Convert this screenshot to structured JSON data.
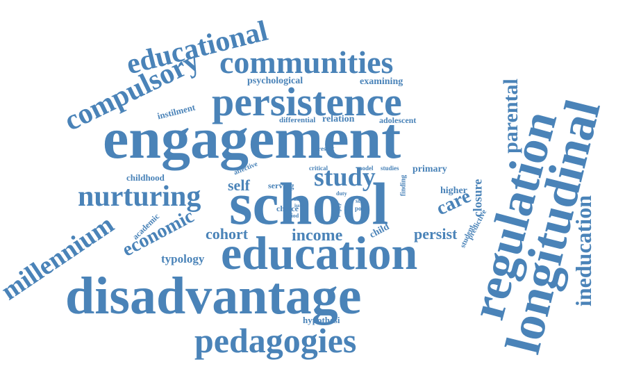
{
  "color": "#4a83b8",
  "words": [
    {
      "id": "engagement",
      "text": "engagement"
    },
    {
      "id": "school",
      "text": "school"
    },
    {
      "id": "education",
      "text": "education"
    },
    {
      "id": "disadvantage",
      "text": "disadvantage"
    },
    {
      "id": "persistence",
      "text": "persistence"
    },
    {
      "id": "pedagogies",
      "text": "pedagogies"
    },
    {
      "id": "regulation",
      "text": "regulation"
    },
    {
      "id": "longitudinal",
      "text": "longitudinal"
    },
    {
      "id": "communities",
      "text": "communities"
    },
    {
      "id": "educational",
      "text": "educational"
    },
    {
      "id": "compulsory",
      "text": "compulsory"
    },
    {
      "id": "nurturing",
      "text": "nurturing"
    },
    {
      "id": "millennium",
      "text": "millennium"
    },
    {
      "id": "economic",
      "text": "economic"
    },
    {
      "id": "parental",
      "text": "parental"
    },
    {
      "id": "ineducation",
      "text": "ineducation"
    },
    {
      "id": "study",
      "text": "study"
    },
    {
      "id": "income",
      "text": "income"
    },
    {
      "id": "cohort",
      "text": "cohort"
    },
    {
      "id": "self",
      "text": "self"
    },
    {
      "id": "care",
      "text": "care"
    },
    {
      "id": "persist",
      "text": "persist"
    },
    {
      "id": "closure",
      "text": "closure"
    },
    {
      "id": "typology",
      "text": "typology"
    },
    {
      "id": "psychological",
      "text": "psychological"
    },
    {
      "id": "examining",
      "text": "examining"
    },
    {
      "id": "instilment",
      "text": "instilment"
    },
    {
      "id": "differential",
      "text": "differential"
    },
    {
      "id": "relation",
      "text": "relation"
    },
    {
      "id": "adolescent",
      "text": "adolescent"
    },
    {
      "id": "childhood",
      "text": "childhood"
    },
    {
      "id": "primary",
      "text": "primary"
    },
    {
      "id": "academic",
      "text": "academic"
    },
    {
      "id": "hypothesi",
      "text": "hypothesi"
    },
    {
      "id": "higher",
      "text": "higher"
    },
    {
      "id": "predictive",
      "text": "predictive"
    },
    {
      "id": "student",
      "text": "student"
    },
    {
      "id": "child",
      "text": "child"
    },
    {
      "id": "choice",
      "text": "choice"
    },
    {
      "id": "serving",
      "text": "serving"
    },
    {
      "id": "present",
      "text": "present"
    },
    {
      "id": "affective",
      "text": "affective"
    },
    {
      "id": "critical",
      "text": "critical"
    },
    {
      "id": "model",
      "text": "model"
    },
    {
      "id": "studies",
      "text": "studies"
    },
    {
      "id": "finding",
      "text": "finding"
    },
    {
      "id": "step",
      "text": "step"
    },
    {
      "id": "post",
      "text": "post"
    },
    {
      "id": "period",
      "text": "period"
    },
    {
      "id": "duty",
      "text": "duty"
    },
    {
      "id": "paper",
      "text": "paper"
    },
    {
      "id": "keep",
      "text": "keep"
    },
    {
      "id": "issue",
      "text": "issue"
    }
  ]
}
